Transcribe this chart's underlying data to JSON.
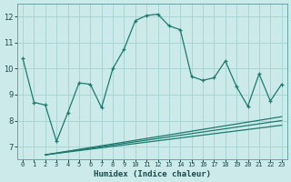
{
  "xlabel": "Humidex (Indice chaleur)",
  "bg_color": "#cdeaea",
  "grid_color": "#a8d5d5",
  "line_color": "#1a7a6e",
  "spine_color": "#5aabaa",
  "xlim": [
    -0.5,
    23.5
  ],
  "ylim": [
    6.5,
    12.5
  ],
  "xticks": [
    0,
    1,
    2,
    3,
    4,
    5,
    6,
    7,
    8,
    9,
    10,
    11,
    12,
    13,
    14,
    15,
    16,
    17,
    18,
    19,
    20,
    21,
    22,
    23
  ],
  "yticks": [
    7,
    8,
    9,
    10,
    11,
    12
  ],
  "main_x": [
    0,
    1,
    2,
    3,
    4,
    5,
    6,
    7,
    8,
    9,
    10,
    11,
    12,
    13,
    14,
    15,
    16,
    17,
    18,
    19,
    20,
    21,
    22,
    23
  ],
  "main_y": [
    10.4,
    8.7,
    8.6,
    7.2,
    8.3,
    9.45,
    9.4,
    8.5,
    10.0,
    10.75,
    11.85,
    12.05,
    12.1,
    11.65,
    11.5,
    9.7,
    9.55,
    9.65,
    10.3,
    9.3,
    8.55,
    9.8,
    8.75,
    9.4
  ],
  "line1_x": [
    2,
    23
  ],
  "line1_y": [
    6.68,
    8.15
  ],
  "line2_x": [
    2,
    23
  ],
  "line2_y": [
    6.68,
    8.0
  ],
  "line3_x": [
    2,
    23
  ],
  "line3_y": [
    6.68,
    7.82
  ]
}
